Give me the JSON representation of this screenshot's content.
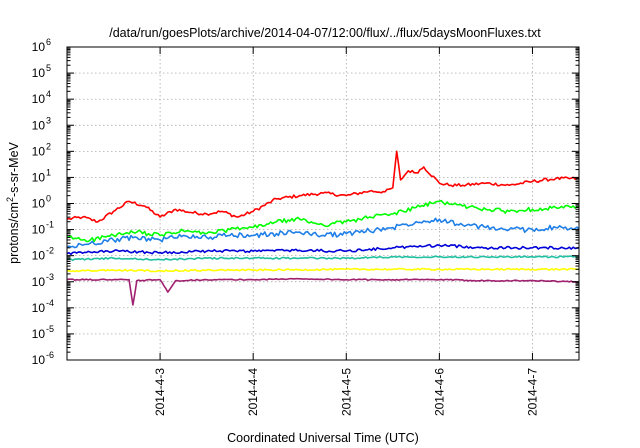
{
  "chart_data": {
    "type": "line",
    "title": "/data/run/goesPlots/archive/2014-04-07/12:00/flux/../flux/5daysMoonFluxes.txt",
    "xlabel": "Coordinated Universal Time (UTC)",
    "ylabel": "protons/cm²-s-sr-MeV",
    "yscale": "log",
    "ylim": [
      1e-06,
      1000000.0
    ],
    "xlim": [
      "2014-04-02 00:00",
      "2014-04-07 12:00"
    ],
    "x_ticks": [
      "2014-4-3",
      "2014-4-4",
      "2014-4-5",
      "2014-4-6",
      "2014-4-7"
    ],
    "y_ticks": [
      {
        "base": "10",
        "exp": "-6"
      },
      {
        "base": "10",
        "exp": "-5"
      },
      {
        "base": "10",
        "exp": "-4"
      },
      {
        "base": "10",
        "exp": "-3"
      },
      {
        "base": "10",
        "exp": "-2"
      },
      {
        "base": "10",
        "exp": "-1"
      },
      {
        "base": "10",
        "exp": "0"
      },
      {
        "base": "10",
        "exp": "1"
      },
      {
        "base": "10",
        "exp": "2"
      },
      {
        "base": "10",
        "exp": "3"
      },
      {
        "base": "10",
        "exp": "4"
      },
      {
        "base": "10",
        "exp": "5"
      },
      {
        "base": "10",
        "exp": "6"
      }
    ],
    "grid": true,
    "legend": "none",
    "series": [
      {
        "color": "#ff0000",
        "x": [
          "2014-04-02 00:00",
          "2014-04-02 04:00",
          "2014-04-02 08:00",
          "2014-04-02 12:00",
          "2014-04-02 16:00",
          "2014-04-02 20:00",
          "2014-04-03 00:00",
          "2014-04-03 04:00",
          "2014-04-03 08:00",
          "2014-04-03 12:00",
          "2014-04-03 16:00",
          "2014-04-03 20:00",
          "2014-04-04 00:00",
          "2014-04-04 06:00",
          "2014-04-04 12:00",
          "2014-04-04 18:00",
          "2014-04-05 00:00",
          "2014-04-05 06:00",
          "2014-04-05 10:00",
          "2014-04-05 12:00",
          "2014-04-05 13:00",
          "2014-04-05 14:00",
          "2014-04-05 16:00",
          "2014-04-05 18:00",
          "2014-04-05 20:00",
          "2014-04-06 00:00",
          "2014-04-06 03:00",
          "2014-04-06 06:00",
          "2014-04-06 12:00",
          "2014-04-06 18:00",
          "2014-04-07 00:00",
          "2014-04-07 06:00",
          "2014-04-07 12:00"
        ],
        "y": [
          0.25,
          0.3,
          0.2,
          0.5,
          1.2,
          0.8,
          0.3,
          0.6,
          0.45,
          0.4,
          0.5,
          0.3,
          0.5,
          1.5,
          2.0,
          2.5,
          2.0,
          3.0,
          2.8,
          4.0,
          100,
          8,
          18,
          15,
          25,
          6,
          5,
          5,
          6,
          5,
          7,
          9,
          9
        ]
      },
      {
        "color": "#00ff00",
        "x": [
          "2014-04-02 00:00",
          "2014-04-02 06:00",
          "2014-04-02 12:00",
          "2014-04-02 18:00",
          "2014-04-03 00:00",
          "2014-04-03 06:00",
          "2014-04-03 12:00",
          "2014-04-03 18:00",
          "2014-04-04 00:00",
          "2014-04-04 06:00",
          "2014-04-04 12:00",
          "2014-04-04 18:00",
          "2014-04-05 00:00",
          "2014-04-05 06:00",
          "2014-04-05 12:00",
          "2014-04-05 18:00",
          "2014-04-06 00:00",
          "2014-04-06 06:00",
          "2014-04-06 12:00",
          "2014-04-06 18:00",
          "2014-04-07 00:00",
          "2014-04-07 06:00",
          "2014-04-07 12:00"
        ],
        "y": [
          0.05,
          0.04,
          0.06,
          0.08,
          0.06,
          0.09,
          0.07,
          0.1,
          0.12,
          0.2,
          0.25,
          0.15,
          0.2,
          0.3,
          0.4,
          0.7,
          1.2,
          0.8,
          0.6,
          0.5,
          0.6,
          0.7,
          0.7
        ]
      },
      {
        "color": "#1e7fe8",
        "x": [
          "2014-04-02 00:00",
          "2014-04-02 06:00",
          "2014-04-02 12:00",
          "2014-04-02 18:00",
          "2014-04-03 00:00",
          "2014-04-03 06:00",
          "2014-04-03 12:00",
          "2014-04-03 18:00",
          "2014-04-04 00:00",
          "2014-04-04 06:00",
          "2014-04-04 12:00",
          "2014-04-04 18:00",
          "2014-04-05 00:00",
          "2014-04-05 06:00",
          "2014-04-05 12:00",
          "2014-04-05 18:00",
          "2014-04-06 00:00",
          "2014-04-06 06:00",
          "2014-04-06 12:00",
          "2014-04-06 18:00",
          "2014-04-07 00:00",
          "2014-04-07 06:00",
          "2014-04-07 12:00"
        ],
        "y": [
          0.02,
          0.03,
          0.04,
          0.05,
          0.04,
          0.06,
          0.05,
          0.06,
          0.06,
          0.07,
          0.08,
          0.06,
          0.07,
          0.09,
          0.12,
          0.2,
          0.25,
          0.15,
          0.12,
          0.1,
          0.1,
          0.12,
          0.1
        ]
      },
      {
        "color": "#0000d8",
        "x": [
          "2014-04-02 00:00",
          "2014-04-02 12:00",
          "2014-04-03 00:00",
          "2014-04-03 12:00",
          "2014-04-04 00:00",
          "2014-04-04 12:00",
          "2014-04-05 00:00",
          "2014-04-05 12:00",
          "2014-04-06 00:00",
          "2014-04-06 12:00",
          "2014-04-07 00:00",
          "2014-04-07 12:00"
        ],
        "y": [
          0.012,
          0.015,
          0.013,
          0.015,
          0.015,
          0.016,
          0.015,
          0.02,
          0.025,
          0.02,
          0.02,
          0.02
        ]
      },
      {
        "color": "#20c0a0",
        "x": [
          "2014-04-02 00:00",
          "2014-04-02 12:00",
          "2014-04-03 00:00",
          "2014-04-03 12:00",
          "2014-04-04 00:00",
          "2014-04-04 12:00",
          "2014-04-05 00:00",
          "2014-04-05 12:00",
          "2014-04-06 00:00",
          "2014-04-06 12:00",
          "2014-04-07 00:00",
          "2014-04-07 12:00"
        ],
        "y": [
          0.007,
          0.008,
          0.007,
          0.008,
          0.008,
          0.008,
          0.008,
          0.009,
          0.009,
          0.009,
          0.009,
          0.009
        ]
      },
      {
        "color": "#ffff00",
        "x": [
          "2014-04-02 00:00",
          "2014-04-02 12:00",
          "2014-04-03 00:00",
          "2014-04-03 12:00",
          "2014-04-04 00:00",
          "2014-04-04 12:00",
          "2014-04-05 00:00",
          "2014-04-05 12:00",
          "2014-04-06 00:00",
          "2014-04-06 12:00",
          "2014-04-07 00:00",
          "2014-04-07 12:00"
        ],
        "y": [
          0.0025,
          0.0028,
          0.0026,
          0.0028,
          0.0028,
          0.0029,
          0.003,
          0.003,
          0.003,
          0.003,
          0.003,
          0.003
        ]
      },
      {
        "color": "#a02070",
        "x": [
          "2014-04-02 00:00",
          "2014-04-02 12:00",
          "2014-04-02 16:00",
          "2014-04-02 17:00",
          "2014-04-02 18:00",
          "2014-04-03 00:00",
          "2014-04-03 02:00",
          "2014-04-03 04:00",
          "2014-04-03 12:00",
          "2014-04-04 00:00",
          "2014-04-04 12:00",
          "2014-04-05 00:00",
          "2014-04-05 12:00",
          "2014-04-06 00:00",
          "2014-04-06 12:00",
          "2014-04-07 00:00",
          "2014-04-07 12:00"
        ],
        "y": [
          0.0012,
          0.0012,
          0.0012,
          0.00013,
          0.0011,
          0.0012,
          0.0004,
          0.0011,
          0.0012,
          0.0012,
          0.0013,
          0.0012,
          0.0012,
          0.0012,
          0.0011,
          0.0011,
          0.001
        ]
      }
    ]
  }
}
